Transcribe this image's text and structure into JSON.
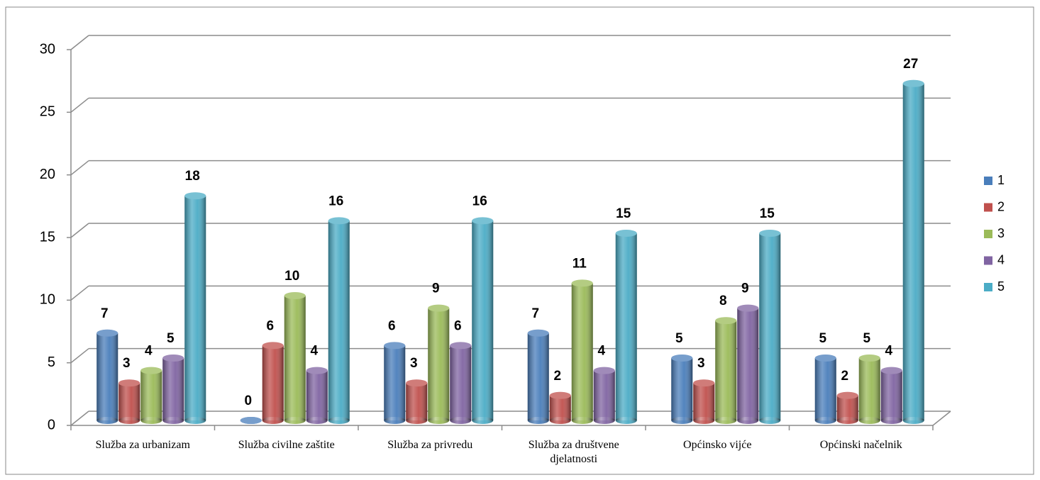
{
  "chart_data": {
    "type": "bar",
    "categories": [
      "Služba za urbanizam",
      "Služba civilne zaštite",
      "Služba za privredu",
      "Služba za društvene djelatnosti",
      "Općinsko vijće",
      "Općinski načelnik"
    ],
    "series": [
      {
        "name": "1",
        "color": "#4a7ebb",
        "values": [
          7,
          0,
          6,
          7,
          5,
          5
        ]
      },
      {
        "name": "2",
        "color": "#c0504d",
        "values": [
          3,
          6,
          3,
          2,
          3,
          2
        ]
      },
      {
        "name": "3",
        "color": "#9bbb59",
        "values": [
          4,
          10,
          9,
          11,
          8,
          5
        ]
      },
      {
        "name": "4",
        "color": "#8064a2",
        "values": [
          5,
          4,
          6,
          4,
          9,
          4
        ]
      },
      {
        "name": "5",
        "color": "#4bacc6",
        "values": [
          18,
          16,
          16,
          15,
          15,
          27
        ]
      }
    ],
    "ylim": [
      0,
      30
    ],
    "yticks": [
      0,
      5,
      10,
      15,
      20,
      25,
      30
    ],
    "grid": true,
    "legend": "right"
  }
}
